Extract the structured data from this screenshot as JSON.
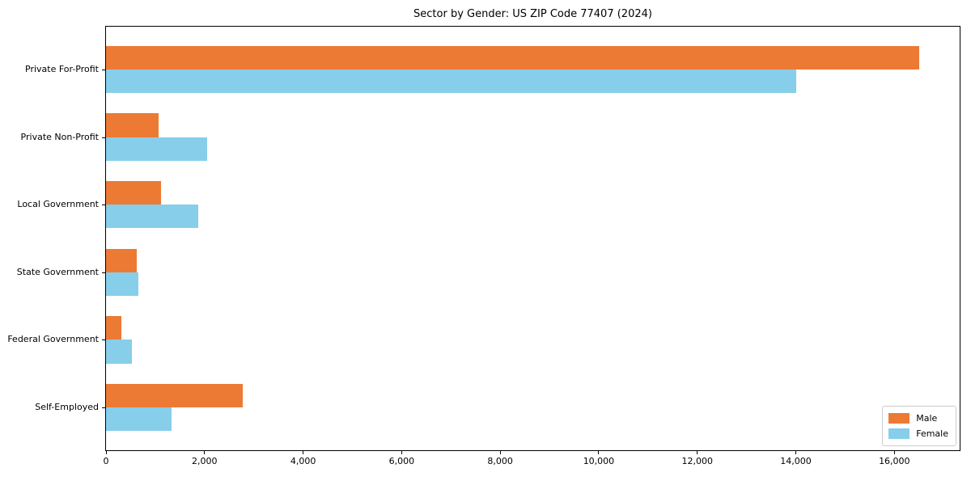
{
  "chart_data": {
    "type": "bar",
    "orientation": "horizontal",
    "title": "Sector by Gender: US ZIP Code 77407 (2024)",
    "categories": [
      "Private For-Profit",
      "Private Non-Profit",
      "Local Government",
      "State Government",
      "Federal Government",
      "Self-Employed"
    ],
    "series": [
      {
        "name": "Male",
        "color": "#ec7a35",
        "values": [
          16500,
          1070,
          1110,
          630,
          310,
          2770
        ]
      },
      {
        "name": "Female",
        "color": "#87ceeb",
        "values": [
          14000,
          2060,
          1870,
          665,
          530,
          1335
        ]
      }
    ],
    "xlabel": "",
    "ylabel": "",
    "xlim": [
      0,
      17325
    ],
    "x_ticks": {
      "values": [
        0,
        2000,
        4000,
        6000,
        8000,
        10000,
        12000,
        14000,
        16000
      ],
      "labels": [
        "0",
        "2,000",
        "4,000",
        "6,000",
        "8,000",
        "10,000",
        "12,000",
        "14,000",
        "16,000"
      ]
    },
    "grid": false,
    "legend_position": "lower right",
    "axis_color": "#000000"
  }
}
